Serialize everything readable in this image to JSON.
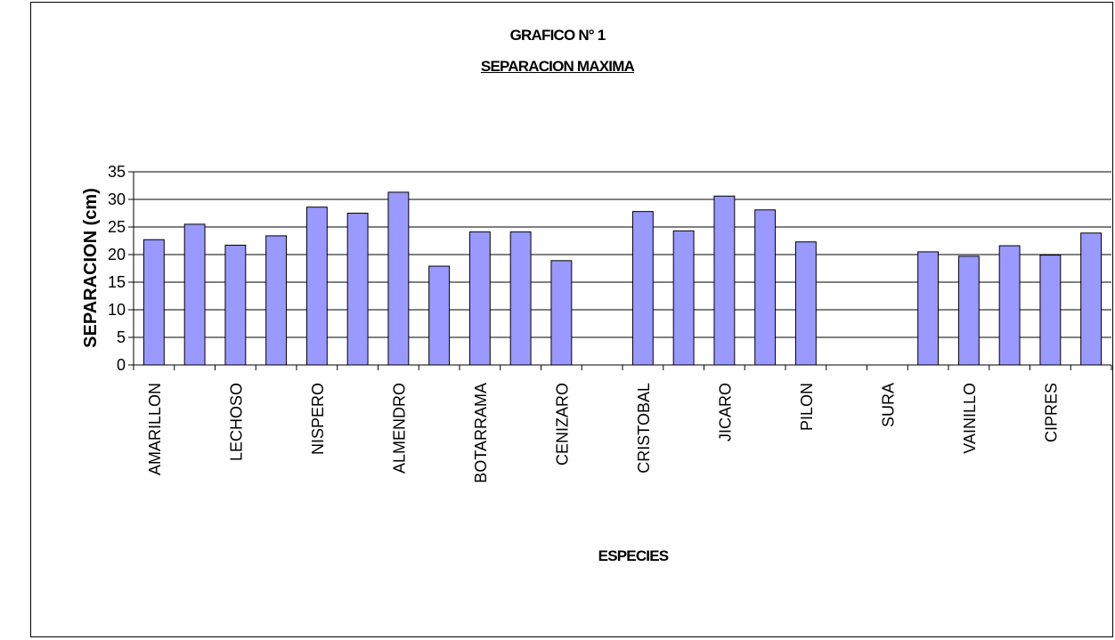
{
  "chart_data": {
    "type": "bar",
    "title": "GRAFICO N° 1",
    "subtitle": "SEPARACION MAXIMA",
    "xlabel": "ESPECIES",
    "ylabel": "SEPARACION (cm)",
    "ylim": [
      0,
      35
    ],
    "yticks": [
      0,
      5,
      10,
      15,
      20,
      25,
      30,
      35
    ],
    "grid": true,
    "legend": "none",
    "bar_color": "#9999ff",
    "categories": [
      "AMARILLON",
      "",
      "LECHOSO",
      "",
      "NISPERO",
      "",
      "ALMENDRO",
      "",
      "BOTARRAMA",
      "",
      "CENIZARO",
      "",
      "CRISTOBAL",
      "",
      "JICARO",
      "",
      "PILON",
      "",
      "SURA",
      "",
      "VAINILLO",
      "",
      "CIPRES",
      ""
    ],
    "values": [
      22.7,
      25.5,
      21.7,
      23.4,
      28.6,
      27.5,
      31.3,
      17.9,
      24.1,
      24.1,
      18.9,
      null,
      27.8,
      24.3,
      30.6,
      28.1,
      22.3,
      null,
      null,
      20.5,
      19.7,
      21.6,
      19.9,
      23.9
    ]
  }
}
